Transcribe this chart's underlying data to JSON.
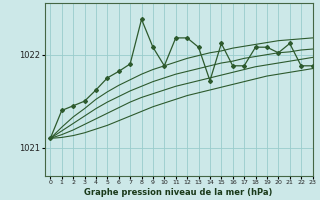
{
  "title": "Graphe pression niveau de la mer (hPa)",
  "bg_color": "#cce8e8",
  "grid_color": "#99cccc",
  "line_color": "#2d5a2d",
  "xlim": [
    -0.5,
    23
  ],
  "ylim": [
    1020.7,
    1022.55
  ],
  "yticks": [
    1021,
    1022
  ],
  "xticks": [
    0,
    1,
    2,
    3,
    4,
    5,
    6,
    7,
    8,
    9,
    10,
    11,
    12,
    13,
    14,
    15,
    16,
    17,
    18,
    19,
    20,
    21,
    22,
    23
  ],
  "main_line": [
    1021.1,
    1021.4,
    1021.45,
    1021.5,
    1021.62,
    1021.75,
    1021.82,
    1021.9,
    1022.38,
    1022.08,
    1021.88,
    1022.18,
    1022.18,
    1022.08,
    1021.72,
    1022.12,
    1021.88,
    1021.88,
    1022.08,
    1022.08,
    1022.02,
    1022.12,
    1021.88,
    1021.88
  ],
  "smooth_line1": [
    1021.1,
    1021.22,
    1021.33,
    1021.42,
    1021.52,
    1021.6,
    1021.67,
    1021.73,
    1021.79,
    1021.84,
    1021.88,
    1021.92,
    1021.96,
    1021.99,
    1022.02,
    1022.04,
    1022.07,
    1022.09,
    1022.11,
    1022.13,
    1022.15,
    1022.16,
    1022.17,
    1022.18
  ],
  "smooth_line2": [
    1021.1,
    1021.18,
    1021.26,
    1021.34,
    1021.42,
    1021.49,
    1021.55,
    1021.61,
    1021.66,
    1021.71,
    1021.75,
    1021.79,
    1021.82,
    1021.85,
    1021.88,
    1021.91,
    1021.93,
    1021.96,
    1021.98,
    1022.0,
    1022.02,
    1022.03,
    1022.05,
    1022.06
  ],
  "smooth_line3": [
    1021.1,
    1021.14,
    1021.19,
    1021.25,
    1021.31,
    1021.37,
    1021.43,
    1021.49,
    1021.54,
    1021.58,
    1021.62,
    1021.66,
    1021.69,
    1021.72,
    1021.75,
    1021.78,
    1021.81,
    1021.84,
    1021.87,
    1021.89,
    1021.91,
    1021.93,
    1021.95,
    1021.97
  ],
  "smooth_line4": [
    1021.1,
    1021.11,
    1021.13,
    1021.16,
    1021.2,
    1021.24,
    1021.29,
    1021.34,
    1021.39,
    1021.44,
    1021.48,
    1021.52,
    1021.56,
    1021.59,
    1021.62,
    1021.65,
    1021.68,
    1021.71,
    1021.74,
    1021.77,
    1021.79,
    1021.81,
    1021.83,
    1021.85
  ]
}
